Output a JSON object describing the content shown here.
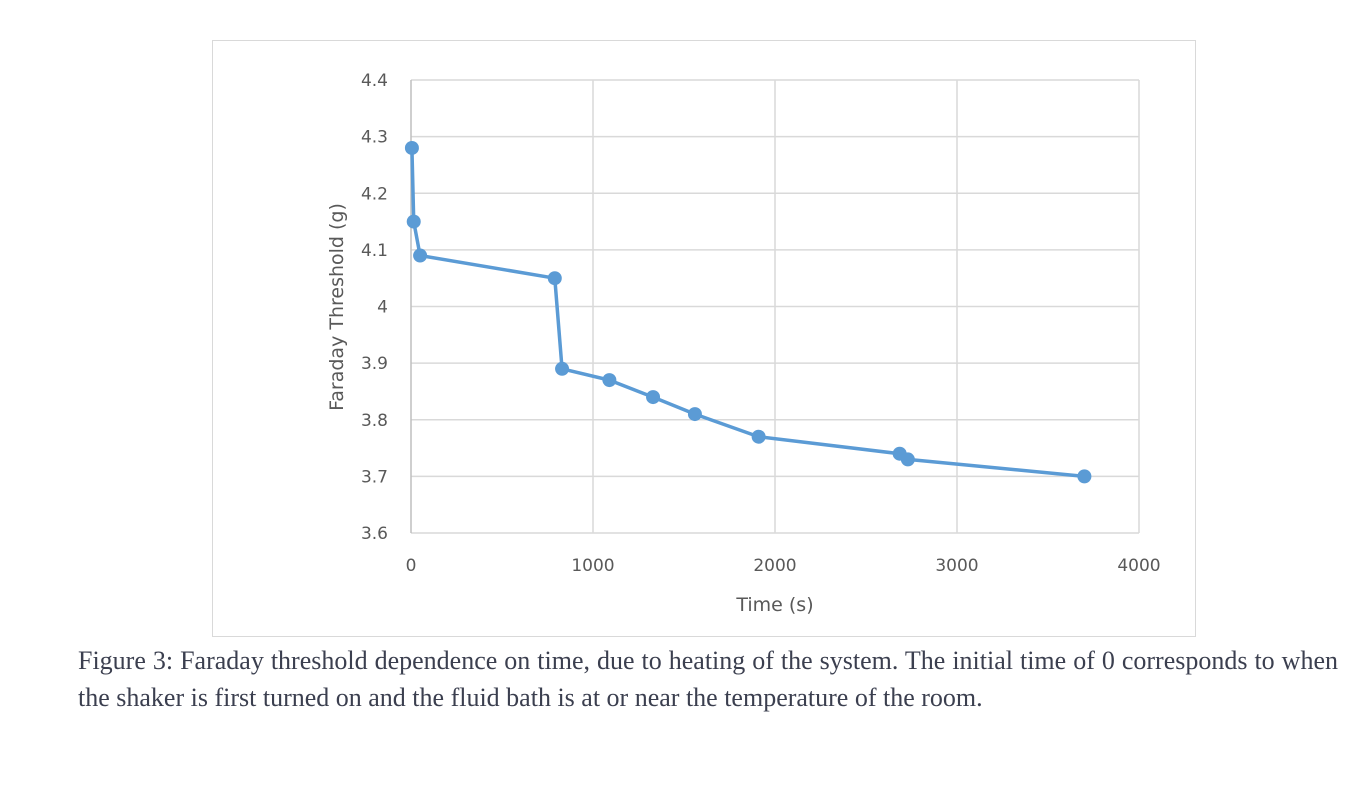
{
  "chart_data": {
    "type": "line",
    "xlabel": "Time (s)",
    "ylabel": "Faraday Threshold (g)",
    "xlim": [
      0,
      4000
    ],
    "ylim": [
      3.6,
      4.4
    ],
    "xticks": [
      "0",
      "1000",
      "2000",
      "3000",
      "4000"
    ],
    "yticks": [
      "3.6",
      "3.7",
      "3.8",
      "3.9",
      "4",
      "4.1",
      "4.2",
      "4.3",
      "4.4"
    ],
    "grid": true,
    "markers": true,
    "color": "#5b9bd5",
    "x": [
      5,
      15,
      50,
      790,
      830,
      1090,
      1330,
      1560,
      1910,
      2685,
      2730,
      3700
    ],
    "y": [
      4.28,
      4.15,
      4.09,
      4.05,
      3.89,
      3.87,
      3.84,
      3.81,
      3.77,
      3.74,
      3.73,
      3.7
    ]
  },
  "caption": "Figure 3: Faraday threshold dependence on time, due to heating of the system. The initial time of 0 corresponds to when the shaker is first turned on and the fluid bath is at or near the temperature of the room."
}
